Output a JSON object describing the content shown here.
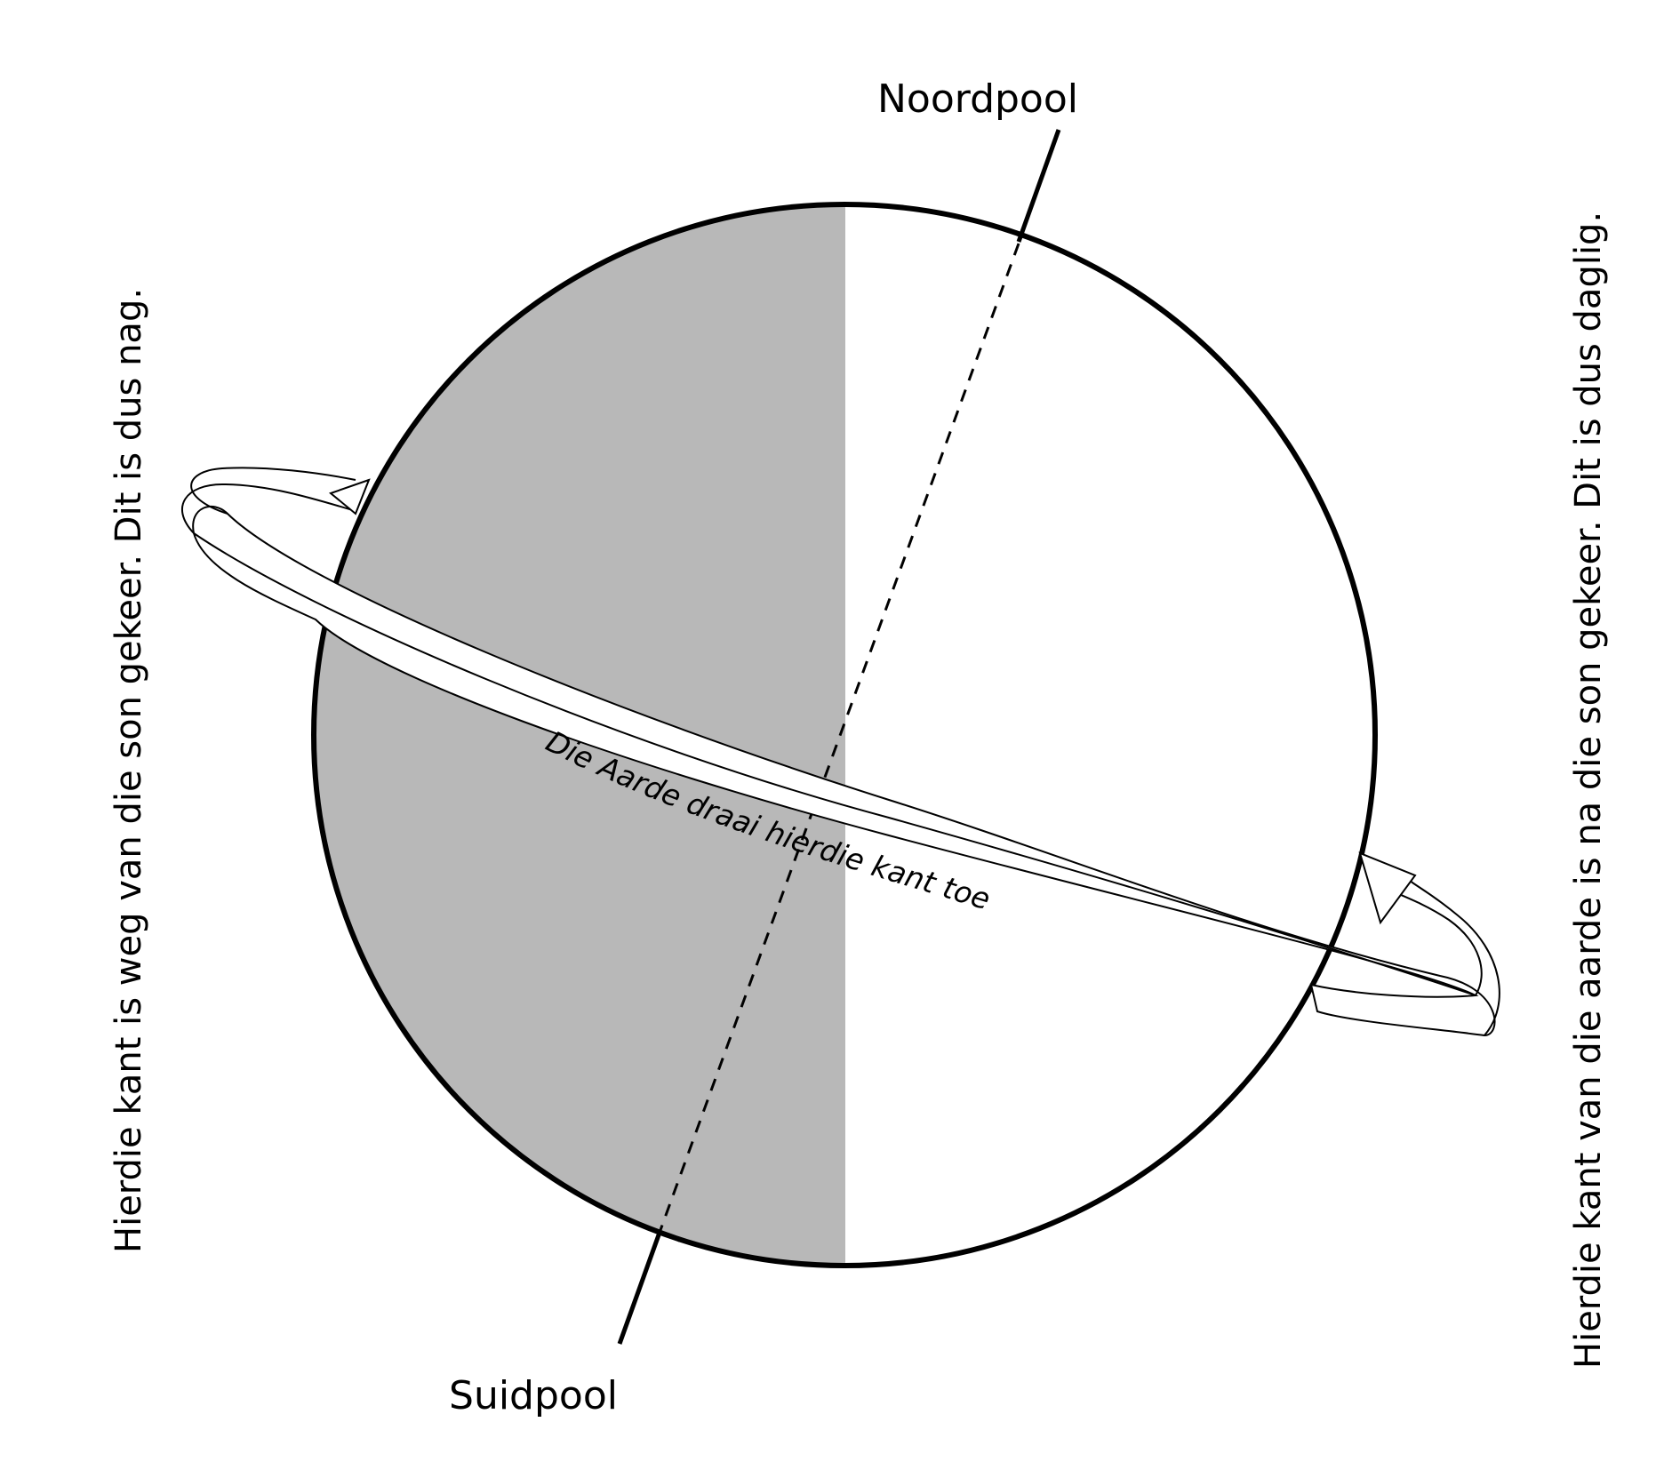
{
  "labels": {
    "north_pole": "Noordpool",
    "south_pole": "Suidpool",
    "rotation": "Die Aarde draai hierdie kant toe",
    "night_side": "Hierdie kant is weg van die son gekeer.  Dit is dus nag.",
    "day_side": "Hierdie kant van die aarde is na die son gekeer.  Dit is dus daglig."
  },
  "colors": {
    "night": "#b8b8b8",
    "day": "#ffffff",
    "outline": "#000000"
  }
}
